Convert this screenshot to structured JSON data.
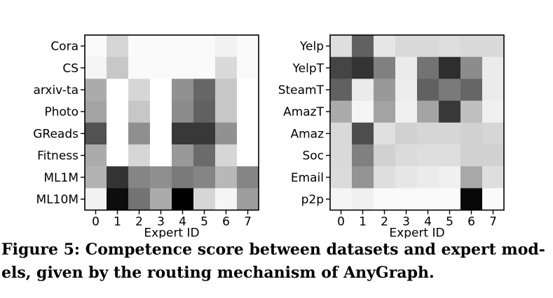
{
  "chart_data": [
    {
      "type": "heatmap",
      "colormap": "grayscale (darker = higher)",
      "x_label": "Expert ID",
      "x_ticks": [
        "0",
        "1",
        "2",
        "3",
        "4",
        "5",
        "6",
        "7"
      ],
      "rows": [
        "Cora",
        "CS",
        "arxiv-ta",
        "Photo",
        "GReads",
        "Fitness",
        "ML1M",
        "ML10M"
      ],
      "values": [
        [
          0.02,
          0.16,
          0.02,
          0.02,
          0.02,
          0.02,
          0.05,
          0.02
        ],
        [
          0.04,
          0.22,
          0.02,
          0.02,
          0.02,
          0.02,
          0.15,
          0.02
        ],
        [
          0.33,
          0.0,
          0.16,
          0.0,
          0.43,
          0.6,
          0.22,
          0.0
        ],
        [
          0.36,
          0.0,
          0.22,
          0.0,
          0.45,
          0.62,
          0.22,
          0.0
        ],
        [
          0.68,
          0.0,
          0.44,
          0.0,
          0.78,
          0.78,
          0.43,
          0.0
        ],
        [
          0.33,
          0.0,
          0.16,
          0.0,
          0.4,
          0.58,
          0.16,
          0.0
        ],
        [
          0.3,
          0.8,
          0.48,
          0.44,
          0.52,
          0.48,
          0.28,
          0.48
        ],
        [
          0.05,
          0.95,
          0.55,
          0.33,
          1.0,
          0.16,
          0.04,
          0.38
        ]
      ]
    },
    {
      "type": "heatmap",
      "colormap": "grayscale (darker = higher)",
      "x_label": "Expert ID",
      "x_ticks": [
        "0",
        "1",
        "2",
        "3",
        "4",
        "5",
        "6",
        "7"
      ],
      "rows": [
        "Yelp",
        "YelpT",
        "SteamT",
        "AmazT",
        "Amaz",
        "Soc",
        "Email",
        "p2p"
      ],
      "values": [
        [
          0.13,
          0.62,
          0.1,
          0.15,
          0.15,
          0.13,
          0.15,
          0.15
        ],
        [
          0.73,
          0.8,
          0.5,
          0.08,
          0.55,
          0.82,
          0.45,
          0.08
        ],
        [
          0.62,
          0.08,
          0.4,
          0.07,
          0.62,
          0.52,
          0.6,
          0.08
        ],
        [
          0.33,
          0.04,
          0.36,
          0.06,
          0.36,
          0.78,
          0.25,
          0.06
        ],
        [
          0.15,
          0.7,
          0.12,
          0.18,
          0.16,
          0.16,
          0.18,
          0.16
        ],
        [
          0.15,
          0.5,
          0.18,
          0.14,
          0.13,
          0.13,
          0.18,
          0.18
        ],
        [
          0.14,
          0.42,
          0.13,
          0.1,
          0.08,
          0.06,
          0.34,
          0.13
        ],
        [
          0.04,
          0.06,
          0.02,
          0.02,
          0.02,
          0.02,
          0.97,
          0.02
        ]
      ]
    }
  ],
  "caption": {
    "line1": "Figure 5: Competence score between datasets and expert mod-",
    "line2": "els, given by the routing mechanism of AnyGraph."
  }
}
